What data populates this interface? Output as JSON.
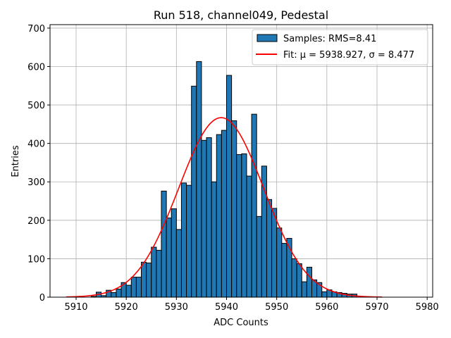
{
  "chart_data": {
    "type": "bar",
    "title": "Run 518, channel049, Pedestal",
    "xlabel": "ADC Counts",
    "ylabel": "Entries",
    "xlim": [
      5904.8,
      5981.1
    ],
    "ylim": [
      0,
      709
    ],
    "grid": true,
    "xticks": [
      5910,
      5920,
      5930,
      5940,
      5950,
      5960,
      5970,
      5980
    ],
    "yticks": [
      0,
      100,
      200,
      300,
      400,
      500,
      600,
      700
    ],
    "bin_width": 1,
    "bins_start": [
      5913,
      5914,
      5915,
      5916,
      5917,
      5918,
      5919,
      5920,
      5921,
      5922,
      5923,
      5924,
      5925,
      5926,
      5927,
      5928,
      5929,
      5930,
      5931,
      5932,
      5933,
      5934,
      5935,
      5936,
      5937,
      5938,
      5939,
      5940,
      5941,
      5942,
      5943,
      5944,
      5945,
      5946,
      5947,
      5948,
      5949,
      5950,
      5951,
      5952,
      5953,
      5954,
      5955,
      5956,
      5957,
      5958,
      5959,
      5960,
      5961,
      5962,
      5963,
      5964,
      5965
    ],
    "values": [
      2,
      13,
      4,
      18,
      12,
      21,
      38,
      31,
      52,
      52,
      91,
      89,
      130,
      122,
      276,
      206,
      230,
      176,
      297,
      291,
      549,
      613,
      408,
      415,
      300,
      423,
      434,
      577,
      459,
      371,
      373,
      315,
      476,
      210,
      341,
      254,
      231,
      180,
      140,
      153,
      100,
      87,
      40,
      78,
      45,
      38,
      14,
      19,
      14,
      12,
      10,
      8,
      8
    ],
    "fit": {
      "mu": 5938.927,
      "sigma": 8.477,
      "amplitude": 467,
      "x_range": [
        5908,
        5971
      ],
      "color": "#ff0000"
    },
    "bar_color": "#1f77b4",
    "legend": {
      "placement": "top-right",
      "entries": [
        {
          "label": "Samples: RMS=8.41"
        },
        {
          "label": "Fit: μ = 5938.927, σ = 8.477"
        }
      ]
    }
  }
}
